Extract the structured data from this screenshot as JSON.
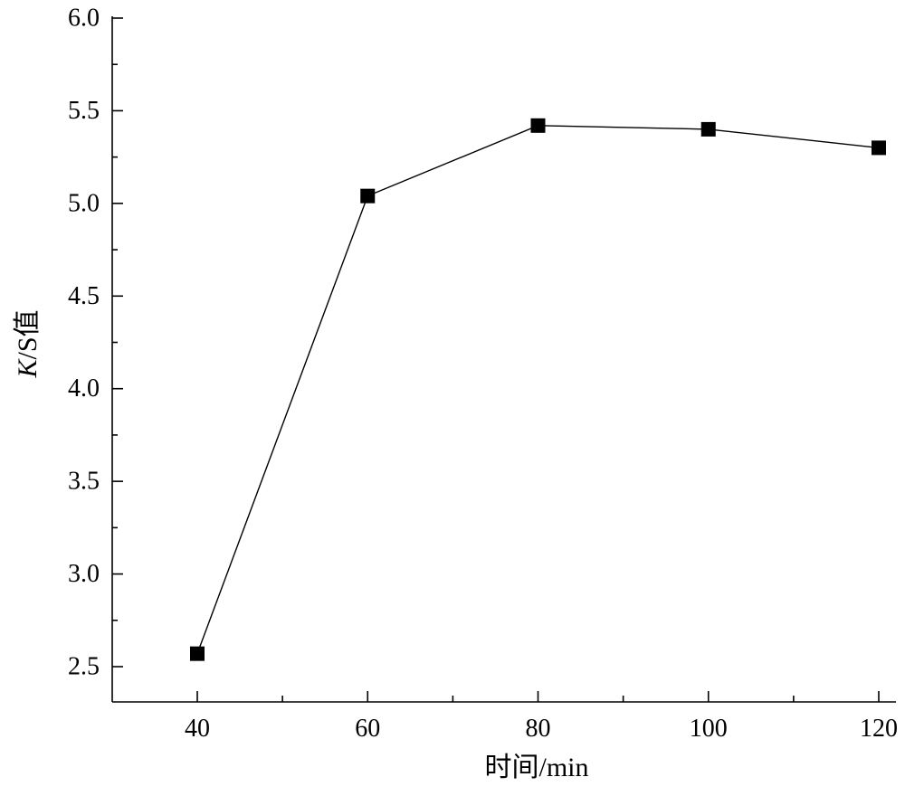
{
  "chart_data": {
    "type": "line",
    "title": "",
    "xlabel": "时间/min",
    "ylabel_italic": "K",
    "ylabel_rest": "/S值",
    "xlim": [
      30,
      122
    ],
    "ylim": [
      2.5,
      6.0
    ],
    "x_ticks": [
      40,
      60,
      80,
      100,
      120
    ],
    "x_minor_ticks": [
      50,
      70,
      90,
      110
    ],
    "y_ticks": [
      "2.5",
      "3.0",
      "3.5",
      "4.0",
      "4.5",
      "5.0",
      "5.5",
      "6.0"
    ],
    "grid": false,
    "legend": "none",
    "marker": "square",
    "color": "#000000",
    "series": [
      {
        "x": [
          40,
          60,
          80,
          100,
          120
        ],
        "values": [
          2.57,
          5.04,
          5.42,
          5.4,
          5.3
        ]
      }
    ]
  }
}
